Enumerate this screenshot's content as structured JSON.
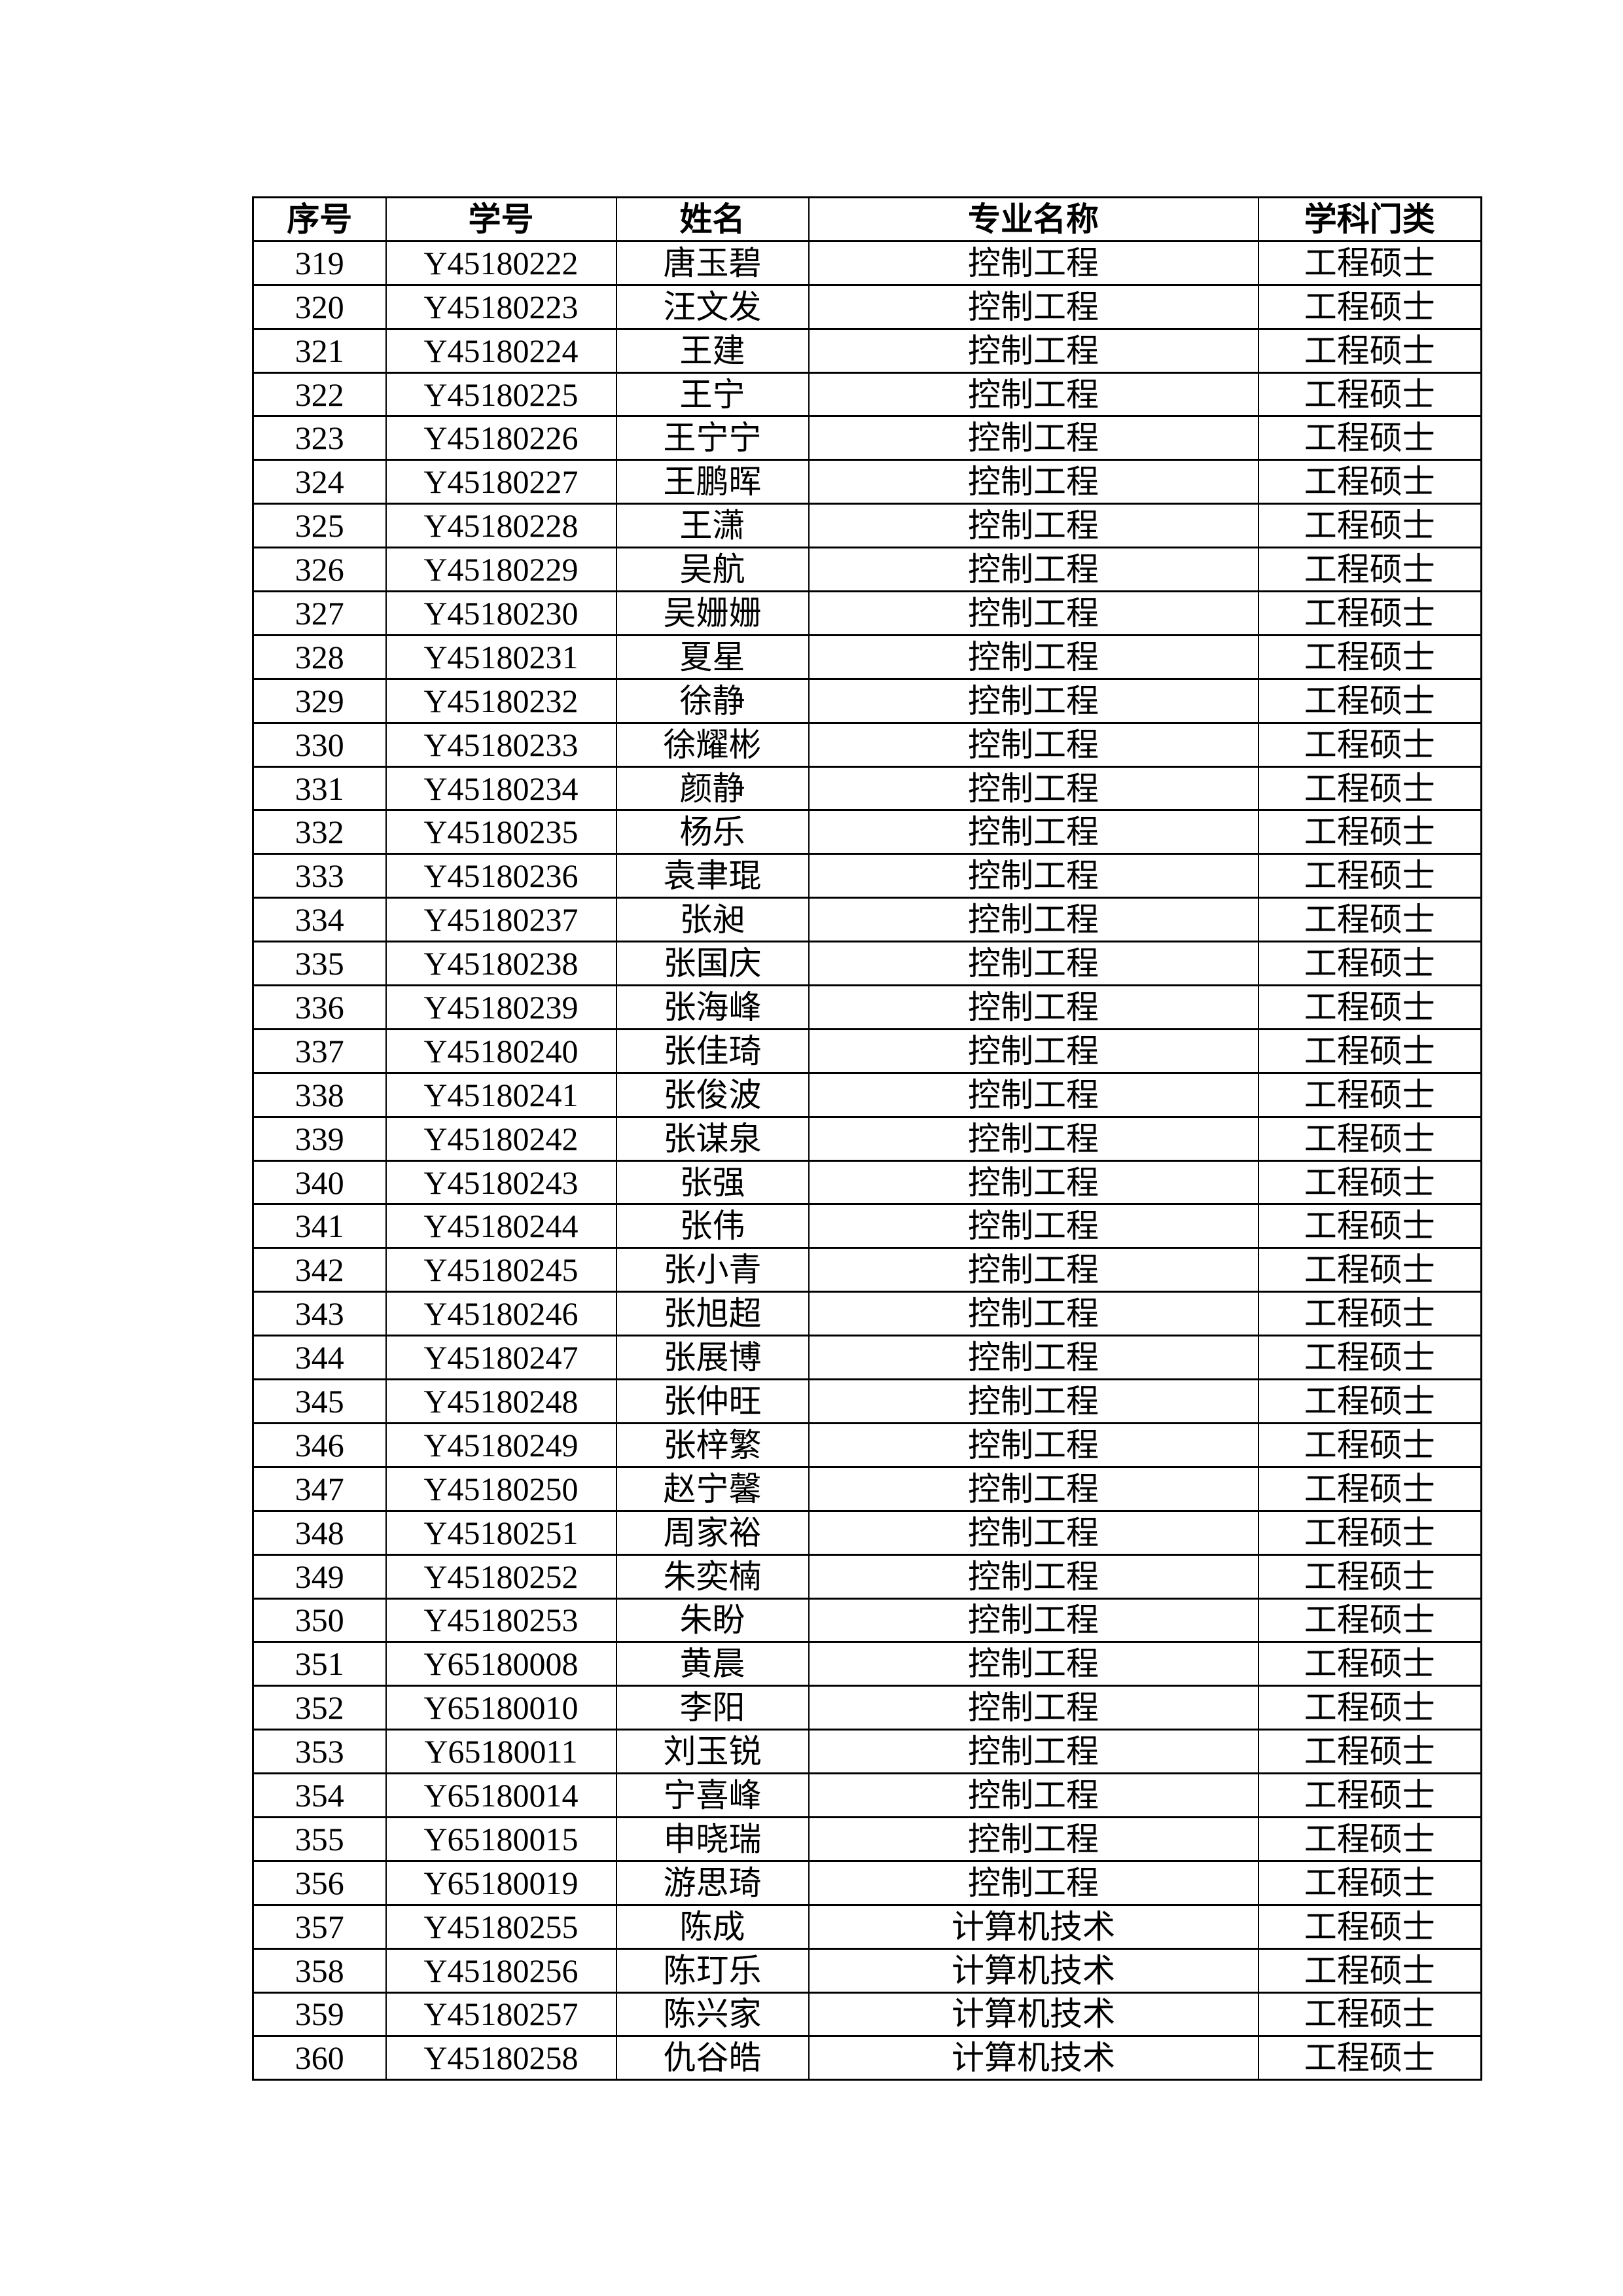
{
  "page": {
    "background": "#ffffff",
    "text_color": "#000000"
  },
  "table": {
    "headers": [
      "序号",
      "学号",
      "姓名",
      "专业名称",
      "学科门类"
    ],
    "rows": [
      [
        "319",
        "Y45180222",
        "唐玉碧",
        "控制工程",
        "工程硕士"
      ],
      [
        "320",
        "Y45180223",
        "汪文发",
        "控制工程",
        "工程硕士"
      ],
      [
        "321",
        "Y45180224",
        "王建",
        "控制工程",
        "工程硕士"
      ],
      [
        "322",
        "Y45180225",
        "王宁",
        "控制工程",
        "工程硕士"
      ],
      [
        "323",
        "Y45180226",
        "王宁宁",
        "控制工程",
        "工程硕士"
      ],
      [
        "324",
        "Y45180227",
        "王鹏晖",
        "控制工程",
        "工程硕士"
      ],
      [
        "325",
        "Y45180228",
        "王潇",
        "控制工程",
        "工程硕士"
      ],
      [
        "326",
        "Y45180229",
        "吴航",
        "控制工程",
        "工程硕士"
      ],
      [
        "327",
        "Y45180230",
        "吴姗姗",
        "控制工程",
        "工程硕士"
      ],
      [
        "328",
        "Y45180231",
        "夏星",
        "控制工程",
        "工程硕士"
      ],
      [
        "329",
        "Y45180232",
        "徐静",
        "控制工程",
        "工程硕士"
      ],
      [
        "330",
        "Y45180233",
        "徐耀彬",
        "控制工程",
        "工程硕士"
      ],
      [
        "331",
        "Y45180234",
        "颜静",
        "控制工程",
        "工程硕士"
      ],
      [
        "332",
        "Y45180235",
        "杨乐",
        "控制工程",
        "工程硕士"
      ],
      [
        "333",
        "Y45180236",
        "袁聿琨",
        "控制工程",
        "工程硕士"
      ],
      [
        "334",
        "Y45180237",
        "张昶",
        "控制工程",
        "工程硕士"
      ],
      [
        "335",
        "Y45180238",
        "张国庆",
        "控制工程",
        "工程硕士"
      ],
      [
        "336",
        "Y45180239",
        "张海峰",
        "控制工程",
        "工程硕士"
      ],
      [
        "337",
        "Y45180240",
        "张佳琦",
        "控制工程",
        "工程硕士"
      ],
      [
        "338",
        "Y45180241",
        "张俊波",
        "控制工程",
        "工程硕士"
      ],
      [
        "339",
        "Y45180242",
        "张谋泉",
        "控制工程",
        "工程硕士"
      ],
      [
        "340",
        "Y45180243",
        "张强",
        "控制工程",
        "工程硕士"
      ],
      [
        "341",
        "Y45180244",
        "张伟",
        "控制工程",
        "工程硕士"
      ],
      [
        "342",
        "Y45180245",
        "张小青",
        "控制工程",
        "工程硕士"
      ],
      [
        "343",
        "Y45180246",
        "张旭超",
        "控制工程",
        "工程硕士"
      ],
      [
        "344",
        "Y45180247",
        "张展博",
        "控制工程",
        "工程硕士"
      ],
      [
        "345",
        "Y45180248",
        "张仲旺",
        "控制工程",
        "工程硕士"
      ],
      [
        "346",
        "Y45180249",
        "张梓繁",
        "控制工程",
        "工程硕士"
      ],
      [
        "347",
        "Y45180250",
        "赵宁馨",
        "控制工程",
        "工程硕士"
      ],
      [
        "348",
        "Y45180251",
        "周家裕",
        "控制工程",
        "工程硕士"
      ],
      [
        "349",
        "Y45180252",
        "朱奕楠",
        "控制工程",
        "工程硕士"
      ],
      [
        "350",
        "Y45180253",
        "朱盼",
        "控制工程",
        "工程硕士"
      ],
      [
        "351",
        "Y65180008",
        "黄晨",
        "控制工程",
        "工程硕士"
      ],
      [
        "352",
        "Y65180010",
        "李阳",
        "控制工程",
        "工程硕士"
      ],
      [
        "353",
        "Y65180011",
        "刘玉锐",
        "控制工程",
        "工程硕士"
      ],
      [
        "354",
        "Y65180014",
        "宁喜峰",
        "控制工程",
        "工程硕士"
      ],
      [
        "355",
        "Y65180015",
        "申晓瑞",
        "控制工程",
        "工程硕士"
      ],
      [
        "356",
        "Y65180019",
        "游思琦",
        "控制工程",
        "工程硕士"
      ],
      [
        "357",
        "Y45180255",
        "陈成",
        "计算机技术",
        "工程硕士"
      ],
      [
        "358",
        "Y45180256",
        "陈玎乐",
        "计算机技术",
        "工程硕士"
      ],
      [
        "359",
        "Y45180257",
        "陈兴家",
        "计算机技术",
        "工程硕士"
      ],
      [
        "360",
        "Y45180258",
        "仇谷皓",
        "计算机技术",
        "工程硕士"
      ]
    ]
  }
}
